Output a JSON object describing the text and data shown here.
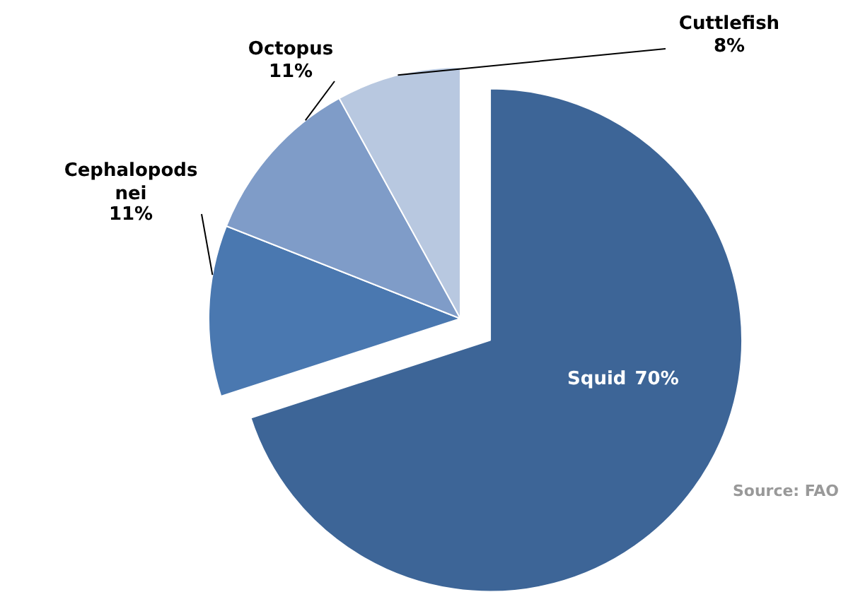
{
  "chart_data": {
    "type": "pie",
    "categories": [
      "Squid",
      "Cephalopods nei",
      "Octopus",
      "Cuttlefish"
    ],
    "values": [
      70,
      11,
      11,
      8
    ],
    "colors": [
      "#3d6597",
      "#4a78b0",
      "#7f9cc8",
      "#b8c8e0"
    ],
    "value_labels": [
      "70%",
      "11%",
      "11%",
      "8%"
    ],
    "annotations": [
      "Source: FAO"
    ]
  }
}
